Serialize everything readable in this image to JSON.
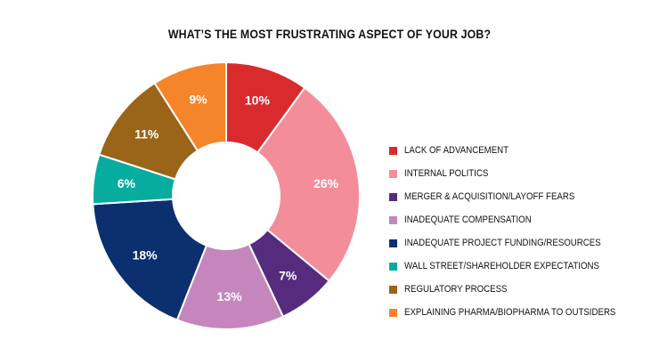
{
  "chart_data": {
    "type": "pie",
    "title": "WHAT’S THE MOST FRUSTRATING ASPECT OF YOUR JOB?",
    "donut": true,
    "legend_position": "right",
    "slices": [
      {
        "label": "LACK OF ADVANCEMENT",
        "value": 10,
        "display": "10%",
        "color": "#d92b2e"
      },
      {
        "label": "INTERNAL POLITICS",
        "value": 26,
        "display": "26%",
        "color": "#f38d9a"
      },
      {
        "label": "MERGER & ACQUISITION/LAYOFF FEARS",
        "value": 7,
        "display": "7%",
        "color": "#552b7e"
      },
      {
        "label": "INADEQUATE COMPENSATION",
        "value": 13,
        "display": "13%",
        "color": "#c486bd"
      },
      {
        "label": "INADEQUATE PROJECT FUNDING/RESOURCES",
        "value": 18,
        "display": "18%",
        "color": "#0c2f6f"
      },
      {
        "label": "WALL STREET/SHAREHOLDER EXPECTATIONS",
        "value": 6,
        "display": "6%",
        "color": "#06ad9f"
      },
      {
        "label": "REGULATORY PROCESS",
        "value": 11,
        "display": "11%",
        "color": "#9a6518"
      },
      {
        "label": "EXPLAINING PHARMA/BIOPHARMA TO OUTSIDERS",
        "value": 9,
        "display": "9%",
        "color": "#f5842a"
      }
    ]
  }
}
